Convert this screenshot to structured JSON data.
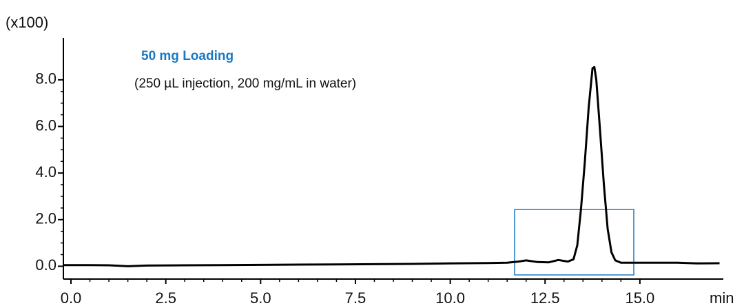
{
  "chart_data": {
    "type": "line",
    "y_multiplier_label": "(x100)",
    "x_axis_label": "min",
    "annotation_title": "50 mg Loading",
    "annotation_text": "(250 µL injection, 200 mg/mL in water)",
    "xlim": [
      -0.2,
      17.2
    ],
    "ylim": [
      -0.55,
      9.8
    ],
    "xticks": [
      {
        "value": 0,
        "label": "0.0"
      },
      2.5,
      {
        "value": 5,
        "label": "5.0"
      },
      7.5,
      {
        "value": 10,
        "label": "10.0"
      },
      12.5,
      {
        "value": 15,
        "label": "15.0"
      }
    ],
    "yticks": [
      {
        "value": 0,
        "label": "0.0"
      },
      {
        "value": 2,
        "label": "2.0"
      },
      {
        "value": 4,
        "label": "4.0"
      },
      {
        "value": 6,
        "label": "6.0"
      },
      {
        "value": 8,
        "label": "8.0"
      }
    ],
    "color": "#000000",
    "x": [
      -0.2,
      0.5,
      1.0,
      1.5,
      2.0,
      3,
      4,
      5,
      6,
      7,
      8,
      9,
      10,
      10.5,
      11,
      11.5,
      11.8,
      12.0,
      12.3,
      12.6,
      12.85,
      13.1,
      13.25,
      13.35,
      13.45,
      13.55,
      13.65,
      13.75,
      13.8,
      13.85,
      13.95,
      14.05,
      14.15,
      14.25,
      14.35,
      14.5,
      15,
      16,
      16.5,
      17.1
    ],
    "y": [
      0.05,
      0.05,
      0.04,
      0.0,
      0.03,
      0.04,
      0.05,
      0.06,
      0.07,
      0.08,
      0.09,
      0.1,
      0.12,
      0.13,
      0.14,
      0.15,
      0.2,
      0.25,
      0.18,
      0.17,
      0.27,
      0.2,
      0.3,
      0.9,
      2.5,
      4.5,
      6.8,
      8.5,
      8.55,
      8.0,
      5.8,
      3.5,
      1.6,
      0.6,
      0.25,
      0.15,
      0.15,
      0.15,
      0.12,
      0.13
    ]
  }
}
